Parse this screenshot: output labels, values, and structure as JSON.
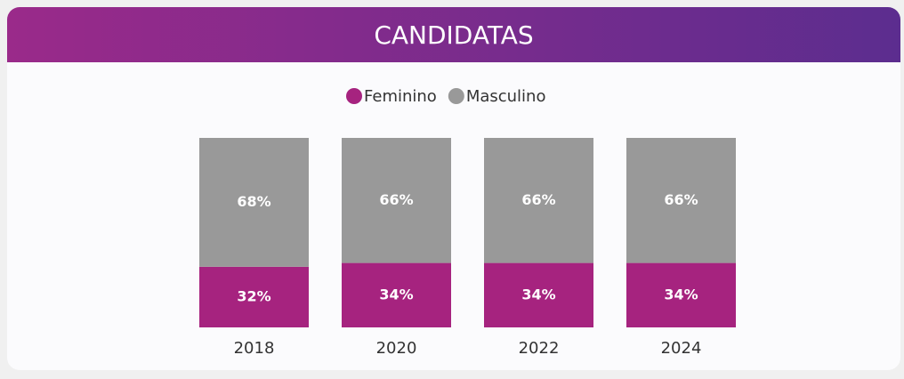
{
  "chart_data": {
    "type": "stacked_bar_100",
    "title": "CANDIDATAS",
    "categories": [
      "2018",
      "2020",
      "2022",
      "2024"
    ],
    "series": [
      {
        "name": "Feminino",
        "color": "#a6237f",
        "values": [
          32,
          34,
          34,
          34
        ],
        "value_labels": [
          "32%",
          "34%",
          "34%",
          "34%"
        ]
      },
      {
        "name": "Masculino",
        "color": "#999999",
        "values": [
          68,
          66,
          66,
          66
        ],
        "value_labels": [
          "68%",
          "66%",
          "66%",
          "66%"
        ]
      }
    ]
  }
}
